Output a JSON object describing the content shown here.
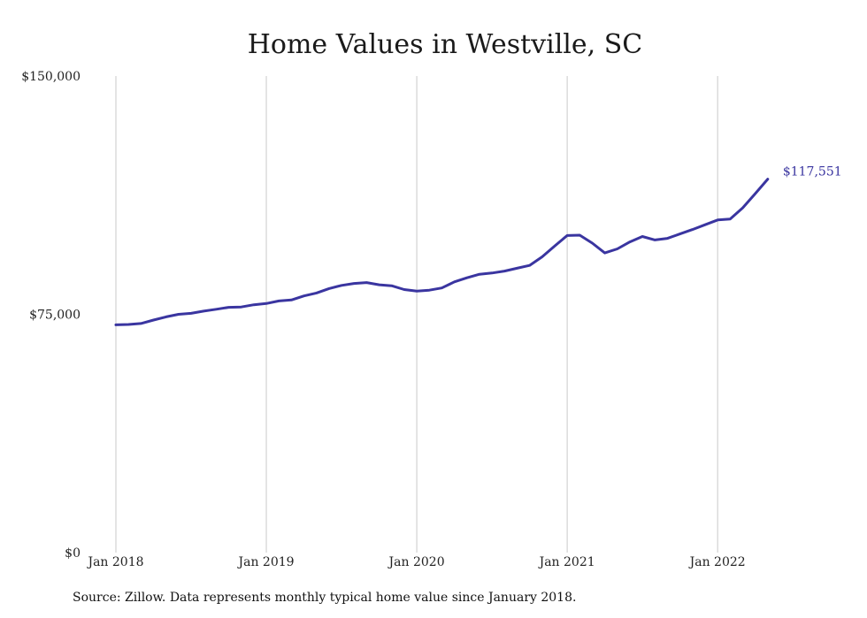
{
  "chart_data": {
    "type": "line",
    "title": "Home Values in Westville, SC",
    "xlabel": "",
    "ylabel": "",
    "ylim": [
      0,
      150000
    ],
    "y_ticks": [
      0,
      75000,
      150000
    ],
    "y_tick_labels": [
      "$0",
      "$75,000",
      "$150,000"
    ],
    "x_ticks": [
      "2018-01",
      "2019-01",
      "2020-01",
      "2021-01",
      "2022-01"
    ],
    "x_tick_labels": [
      "Jan 2018",
      "Jan 2019",
      "Jan 2020",
      "Jan 2021",
      "Jan 2022"
    ],
    "grid": "vertical",
    "color": "#3a35a0",
    "end_label": "$117,551",
    "x": [
      "2018-01",
      "2018-02",
      "2018-03",
      "2018-04",
      "2018-05",
      "2018-06",
      "2018-07",
      "2018-08",
      "2018-09",
      "2018-10",
      "2018-11",
      "2018-12",
      "2019-01",
      "2019-02",
      "2019-03",
      "2019-04",
      "2019-05",
      "2019-06",
      "2019-07",
      "2019-08",
      "2019-09",
      "2019-10",
      "2019-11",
      "2019-12",
      "2020-01",
      "2020-02",
      "2020-03",
      "2020-04",
      "2020-05",
      "2020-06",
      "2020-07",
      "2020-08",
      "2020-09",
      "2020-10",
      "2020-11",
      "2020-12",
      "2021-01",
      "2021-02",
      "2021-03",
      "2021-04",
      "2021-05",
      "2021-06",
      "2021-07",
      "2021-08",
      "2021-09",
      "2021-10",
      "2021-11",
      "2021-12",
      "2022-01",
      "2022-02",
      "2022-03",
      "2022-04",
      "2022-05"
    ],
    "y": [
      71700,
      71800,
      72100,
      73200,
      74200,
      75000,
      75300,
      76000,
      76600,
      77200,
      77300,
      78000,
      78400,
      79200,
      79500,
      80800,
      81700,
      83100,
      84100,
      84700,
      85000,
      84300,
      84000,
      82800,
      82300,
      82600,
      83300,
      85200,
      86500,
      87600,
      88000,
      88600,
      89500,
      90400,
      93100,
      96500,
      99800,
      99900,
      97400,
      94300,
      95600,
      97800,
      99500,
      98400,
      98900,
      100300,
      101700,
      103200,
      104700,
      105000,
      108500,
      113000,
      117551
    ]
  },
  "footer": {
    "source": "Source: Zillow. Data represents monthly typical home value since January 2018."
  }
}
